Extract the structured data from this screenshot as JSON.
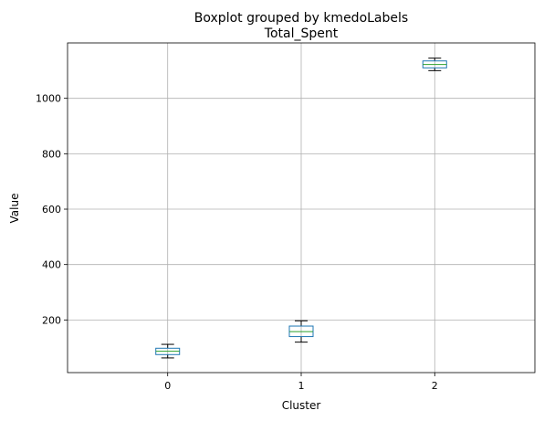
{
  "chart_data": {
    "type": "boxplot",
    "suptitle": "Boxplot grouped by kmedoLabels",
    "title": "Total_Spent",
    "xlabel": "Cluster",
    "ylabel": "Value",
    "categories": [
      "0",
      "1",
      "2"
    ],
    "ylim": [
      10,
      1200
    ],
    "yticks": [
      200,
      400,
      600,
      800,
      1000
    ],
    "grid": true,
    "box_color": "#1f77b4",
    "median_color": "#2ca02c",
    "whisker_color": "#000000",
    "boxes": [
      {
        "label": "0",
        "whislo": 63,
        "q1": 75,
        "median": 87,
        "q3": 98,
        "whishi": 112
      },
      {
        "label": "1",
        "whislo": 120,
        "q1": 140,
        "median": 158,
        "q3": 178,
        "whishi": 197
      },
      {
        "label": "2",
        "whislo": 1100,
        "q1": 1110,
        "median": 1122,
        "q3": 1135,
        "whishi": 1145
      }
    ]
  }
}
